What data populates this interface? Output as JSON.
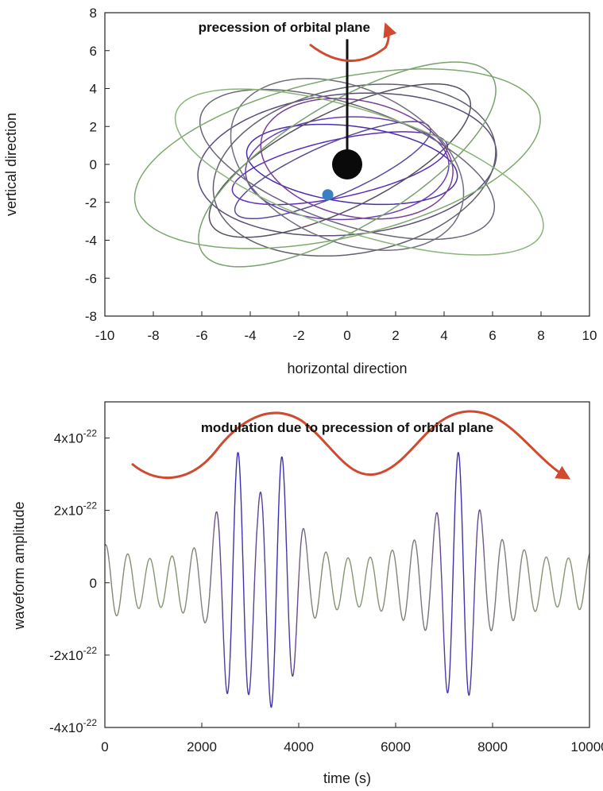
{
  "chart_data": [
    {
      "type": "line",
      "xlabel": "horizontal direction",
      "ylabel": "vertical direction",
      "xlim": [
        -10,
        10
      ],
      "ylim": [
        -8,
        8
      ],
      "x_ticks": [
        "-10",
        "-8",
        "-6",
        "-4",
        "-2",
        "0",
        "2",
        "4",
        "6",
        "8",
        "10"
      ],
      "y_ticks": [
        "8",
        "6",
        "4",
        "2",
        "0",
        "-2",
        "-4",
        "-6",
        "-8"
      ],
      "annotation": "precession of orbital plane",
      "central_mass": {
        "x": 0,
        "y": 0
      },
      "orbiting_body": {
        "x": -0.8,
        "y": -1.6
      },
      "spin_axis": {
        "x": 0,
        "y_from": 0,
        "y_to": 6.6
      },
      "orbits": [
        {
          "color": "#5b2dbf",
          "a": 4.6,
          "b": 1.5,
          "angle_deg": 16,
          "cx": -0.3,
          "cy": -0.2
        },
        {
          "color": "#4a2fa8",
          "a": 4.4,
          "b": 2.0,
          "angle_deg": -10,
          "cx": 0.2,
          "cy": 0.0
        },
        {
          "color": "#6a3fb5",
          "a": 4.2,
          "b": 2.7,
          "angle_deg": 4,
          "cx": 0.0,
          "cy": -0.2
        },
        {
          "color": "#5a4a9a",
          "a": 4.6,
          "b": 1.3,
          "angle_deg": 30,
          "cx": -0.6,
          "cy": -0.3
        },
        {
          "color": "#7a3f9a",
          "a": 4.1,
          "b": 3.0,
          "angle_deg": -22,
          "cx": 0.4,
          "cy": 0.3
        },
        {
          "color": "#5c4c7a",
          "a": 6.2,
          "b": 3.7,
          "angle_deg": 8,
          "cx": 0.0,
          "cy": 0.0
        },
        {
          "color": "#6a6578",
          "a": 6.6,
          "b": 3.0,
          "angle_deg": -26,
          "cx": 0.0,
          "cy": 0.0
        },
        {
          "color": "#55505e",
          "a": 6.3,
          "b": 2.4,
          "angle_deg": 34,
          "cx": -0.3,
          "cy": 0.2
        },
        {
          "color": "#716e80",
          "a": 5.4,
          "b": 3.8,
          "angle_deg": -40,
          "cx": 0.0,
          "cy": 0.0
        },
        {
          "color": "#63606e",
          "a": 6.0,
          "b": 4.3,
          "angle_deg": 20,
          "cx": 0.3,
          "cy": -0.3
        },
        {
          "color": "#7fa86f",
          "a": 8.7,
          "b": 4.1,
          "angle_deg": 18,
          "cx": -0.4,
          "cy": 0.3
        },
        {
          "color": "#8ab57a",
          "a": 8.2,
          "b": 3.1,
          "angle_deg": -24,
          "cx": 0.5,
          "cy": -0.4
        },
        {
          "color": "#7aa06d",
          "a": 7.6,
          "b": 3.0,
          "angle_deg": 40,
          "cx": 0.0,
          "cy": 0.0
        }
      ]
    },
    {
      "type": "line",
      "xlabel": "time (s)",
      "ylabel": "waveform amplitude",
      "xlim": [
        0,
        10000
      ],
      "ylim": [
        -4e-22,
        5e-22
      ],
      "x_ticks": [
        "0",
        "2000",
        "4000",
        "6000",
        "8000",
        "10000"
      ],
      "y_ticks": [
        {
          "value": 4e-22,
          "mant": "4x10",
          "exp": "-22"
        },
        {
          "value": 2e-22,
          "mant": "2x10",
          "exp": "-22"
        },
        {
          "value": 0,
          "mant": "0",
          "exp": ""
        },
        {
          "value": -2e-22,
          "mant": "-2x10",
          "exp": "-22"
        },
        {
          "value": -4e-22,
          "mant": "-4x10",
          "exp": "-22"
        }
      ],
      "annotation": "modulation due to precession of orbital plane",
      "waveform": {
        "frequency_hz": 0.0022,
        "envelope_peaks_s": [
          2750,
          3550,
          7300
        ],
        "peak_amplitude": 3.6e-22,
        "min_amplitude": 5e-23,
        "colors": {
          "low": "#8aa070",
          "mid": "#6a4c8a",
          "high": "#3b2fb0"
        }
      }
    }
  ]
}
